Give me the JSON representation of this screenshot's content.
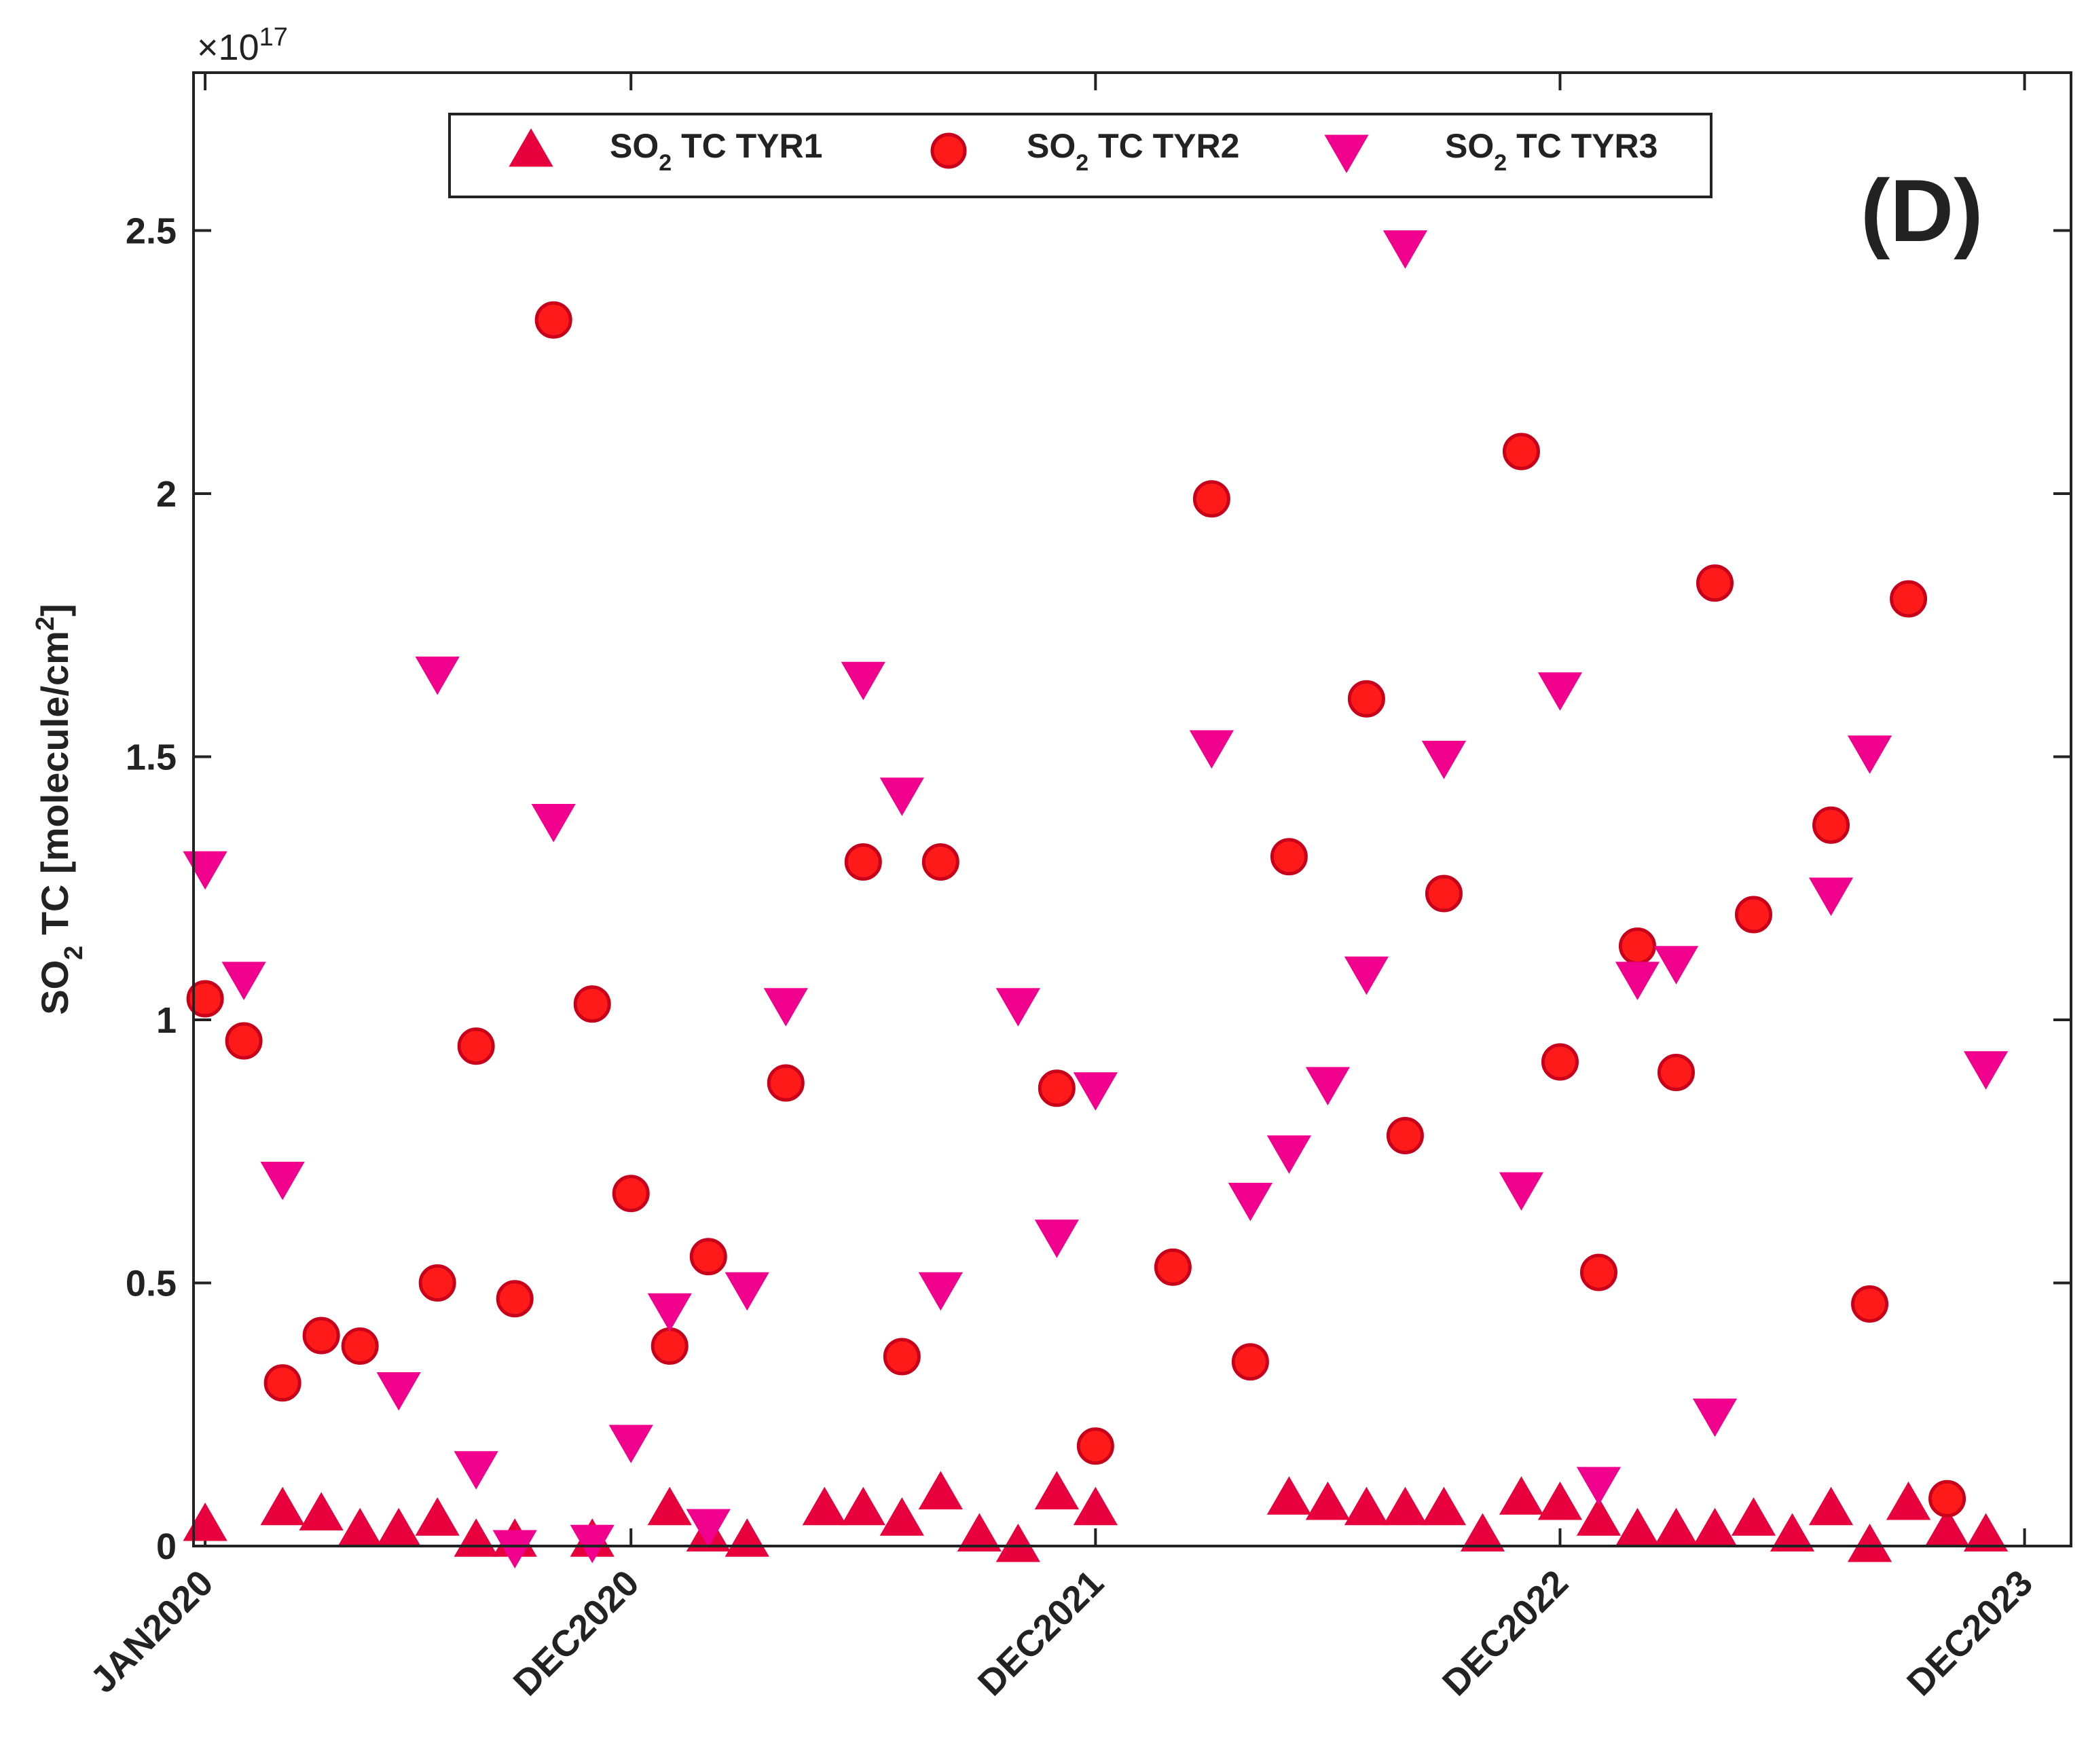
{
  "chart_data": {
    "type": "scatter",
    "panel_label": "(D)",
    "ylabel": {
      "prefix": "SO",
      "sub": "2",
      "main": " TC [molecule/cm",
      "sup": "2",
      "suffix": "]"
    },
    "y_exponent": {
      "prefix": "×10",
      "power": "17"
    },
    "ylim": [
      0,
      2.8
    ],
    "yticks": [
      0,
      0.5,
      1,
      1.5,
      2,
      2.5
    ],
    "ytick_labels": [
      "0",
      "0.5",
      "1",
      "1.5",
      "2",
      "2.5"
    ],
    "xlim": [
      -0.3,
      48.2
    ],
    "xticks": [
      0,
      11,
      23,
      35,
      47
    ],
    "xtick_labels": [
      "JAN2020",
      "DEC2020",
      "DEC2021",
      "DEC2022",
      "DEC2023"
    ],
    "x_unit": "months since JAN2020",
    "colors": {
      "tyr1": "#e8003c",
      "tyr2": "#ff1a1a",
      "tyr2_edge": "#c8001a",
      "tyr3": "#f0008c"
    },
    "series": [
      {
        "key": "tyr1",
        "label": {
          "prefix": "SO",
          "sub": "2",
          "rest": " TC TYR1"
        },
        "marker": "triangle-up",
        "x": [
          0,
          2,
          3,
          4,
          5,
          6,
          7,
          8,
          10,
          12,
          13,
          14,
          16,
          17,
          18,
          19,
          20,
          21,
          22,
          23,
          28,
          29,
          30,
          31,
          32,
          33,
          34,
          35,
          36,
          37,
          38,
          39,
          40,
          41,
          42,
          43,
          44,
          45,
          46
        ],
        "y": [
          0.04,
          0.07,
          0.06,
          0.03,
          0.03,
          0.05,
          0.01,
          0.01,
          0.01,
          0.07,
          0.02,
          0.01,
          0.07,
          0.07,
          0.05,
          0.1,
          0.02,
          0.0,
          0.1,
          0.07,
          0.09,
          0.08,
          0.07,
          0.07,
          0.07,
          0.02,
          0.09,
          0.08,
          0.05,
          0.03,
          0.03,
          0.03,
          0.05,
          0.02,
          0.07,
          0.0,
          0.08,
          0.03,
          0.02
        ]
      },
      {
        "key": "tyr2",
        "label": {
          "prefix": "SO",
          "sub": "2",
          "rest": " TC TYR2"
        },
        "marker": "circle",
        "x": [
          0,
          1,
          2,
          3,
          4,
          6,
          7,
          8,
          9,
          10,
          11,
          12,
          13,
          15,
          17,
          18,
          19,
          22,
          23,
          25,
          26,
          27,
          28,
          30,
          31,
          32,
          34,
          35,
          36,
          37,
          38,
          39,
          40,
          42,
          43,
          44,
          45
        ],
        "y": [
          1.04,
          0.96,
          0.31,
          0.4,
          0.38,
          0.5,
          0.95,
          0.47,
          2.33,
          1.03,
          0.67,
          0.38,
          0.55,
          0.88,
          1.3,
          0.36,
          1.3,
          0.87,
          0.19,
          0.53,
          1.99,
          0.35,
          1.31,
          1.61,
          0.78,
          1.24,
          2.08,
          0.92,
          0.52,
          1.14,
          0.9,
          1.83,
          1.2,
          1.37,
          0.46,
          1.8,
          0.09
        ]
      },
      {
        "key": "tyr3",
        "label": {
          "prefix": "SO",
          "sub": "2",
          "rest": " TC TYR3"
        },
        "marker": "triangle-down",
        "x": [
          0,
          1,
          2,
          5,
          6,
          7,
          8,
          9,
          10,
          11,
          12,
          13,
          14,
          15,
          17,
          18,
          19,
          21,
          22,
          23,
          26,
          27,
          28,
          29,
          30,
          31,
          32,
          34,
          35,
          36,
          37,
          38,
          39,
          42,
          43,
          46
        ],
        "y": [
          1.29,
          1.08,
          0.7,
          0.3,
          1.66,
          0.15,
          0.0,
          1.38,
          0.01,
          0.2,
          0.45,
          0.04,
          0.49,
          1.03,
          1.65,
          1.43,
          0.49,
          1.03,
          0.59,
          0.87,
          1.52,
          0.66,
          0.75,
          0.88,
          1.09,
          2.47,
          1.5,
          0.68,
          1.63,
          0.12,
          1.08,
          1.11,
          0.25,
          1.24,
          1.51,
          0.91
        ]
      }
    ]
  }
}
